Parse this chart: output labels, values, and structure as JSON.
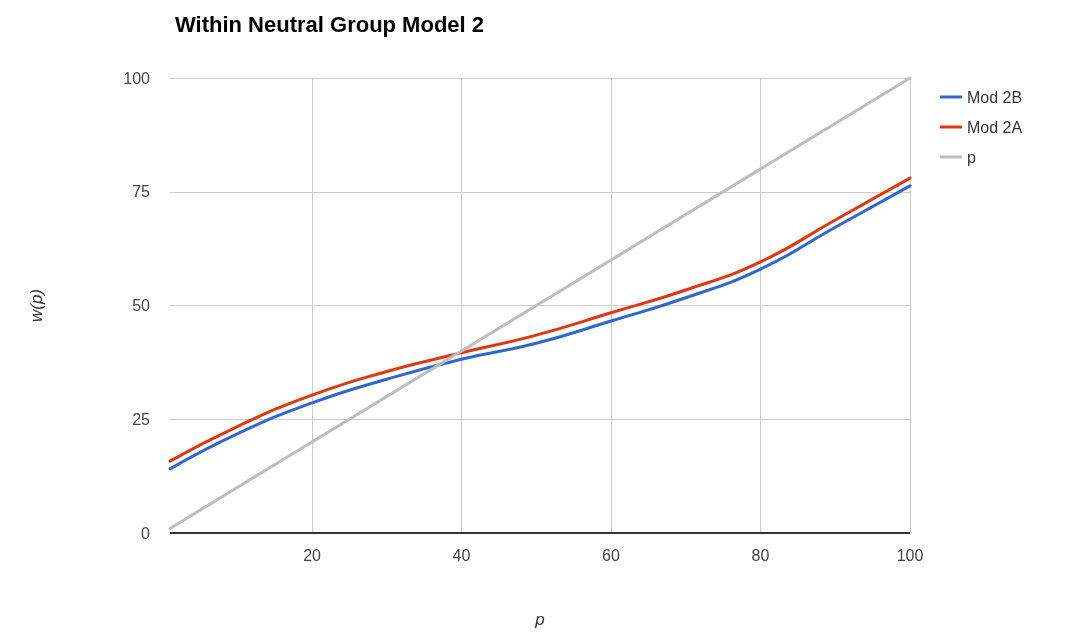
{
  "chart_data": {
    "type": "line",
    "title": "Within Neutral Group Model 2",
    "xlabel": "p",
    "ylabel": "w(p)",
    "xlim": [
      1,
      100
    ],
    "xticks": [
      20,
      40,
      60,
      80,
      100
    ],
    "ylim": [
      0,
      100
    ],
    "yticks": [
      0,
      25,
      50,
      75,
      100
    ],
    "grid": true,
    "legend": "top right",
    "marker": "none",
    "line_style": "solid",
    "series": [
      {
        "name": "Mod 2B",
        "color": "#3366cc",
        "x": [
          1,
          10,
          20,
          30,
          40,
          50,
          60,
          70,
          80,
          90,
          100
        ],
        "values": [
          14.1,
          21.8,
          28.6,
          33.8,
          38.2,
          41.7,
          46.6,
          51.7,
          58.0,
          67.2,
          76.3
        ]
      },
      {
        "name": "Mod 2A",
        "color": "#dc3912",
        "x": [
          1,
          10,
          20,
          30,
          40,
          50,
          60,
          70,
          80,
          90,
          100
        ],
        "values": [
          15.8,
          23.4,
          30.3,
          35.5,
          39.6,
          43.5,
          48.4,
          53.4,
          59.6,
          68.8,
          78.0
        ]
      },
      {
        "name": "p",
        "color": "#bdbdbd",
        "x": [
          1,
          100
        ],
        "values": [
          1,
          100
        ]
      }
    ]
  }
}
